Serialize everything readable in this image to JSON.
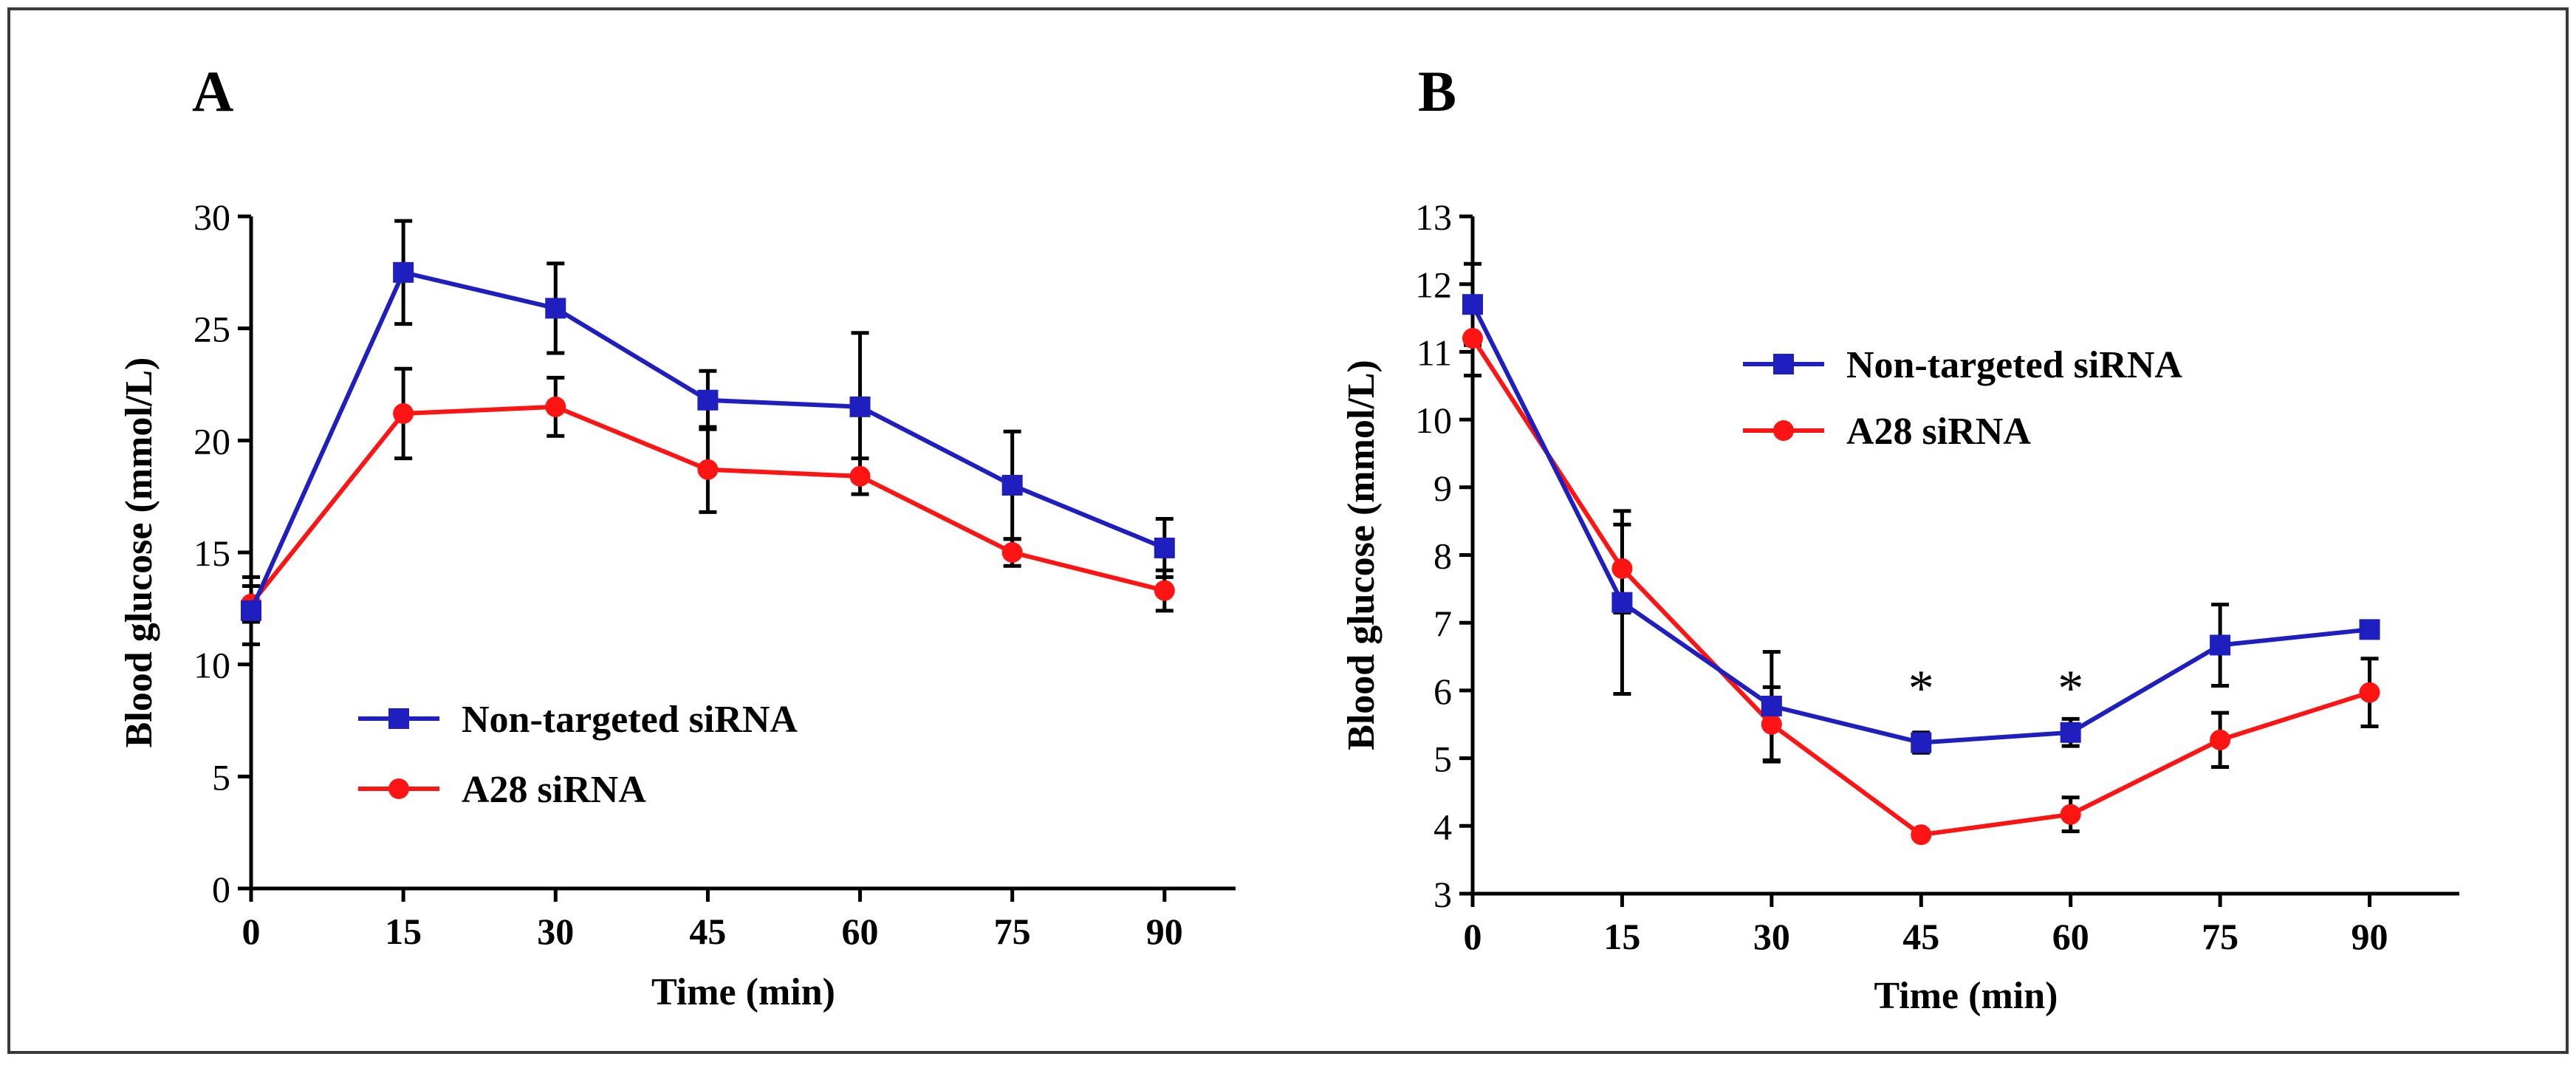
{
  "colors": {
    "frame": "#3a3a3a",
    "axis": "#000000",
    "non_targeted": "#1f1fbf",
    "a28": "#ff1414",
    "error_bar": "#000000"
  },
  "chart_data": [
    {
      "type": "line",
      "panel_label": "A",
      "title": "",
      "xlabel": "Time (min)",
      "ylabel": "Blood glucose (mmol/L)",
      "x": [
        0,
        15,
        30,
        45,
        60,
        75,
        90
      ],
      "xticks": [
        "0",
        "15",
        "30",
        "45",
        "60",
        "75",
        "90"
      ],
      "xlim": [
        0,
        97
      ],
      "ylim": [
        0,
        30
      ],
      "yticks": [
        "0",
        "5",
        "10",
        "15",
        "20",
        "25",
        "30"
      ],
      "grid": false,
      "legend": "lower-left",
      "series": [
        {
          "name": "Non-targeted siRNA",
          "marker": "square",
          "color_key": "non_targeted",
          "values": [
            12.4,
            27.5,
            25.9,
            21.8,
            21.5,
            18.0,
            15.2
          ],
          "errors": [
            1.5,
            2.3,
            2.0,
            1.3,
            3.3,
            2.4,
            1.3
          ]
        },
        {
          "name": "A28 siRNA",
          "marker": "circle",
          "color_key": "a28",
          "values": [
            12.7,
            21.2,
            21.5,
            18.7,
            18.4,
            15.0,
            13.3
          ],
          "errors": [
            0.8,
            2.0,
            1.3,
            1.9,
            0.8,
            0.6,
            0.9
          ]
        }
      ],
      "annotations": []
    },
    {
      "type": "line",
      "panel_label": "B",
      "title": "",
      "xlabel": "Time (min)",
      "ylabel": "Blood glucose (mmol/L)",
      "x": [
        0,
        15,
        30,
        45,
        60,
        75,
        90
      ],
      "xticks": [
        "0",
        "15",
        "30",
        "45",
        "60",
        "75",
        "90"
      ],
      "xlim": [
        0,
        99
      ],
      "ylim": [
        3,
        13
      ],
      "yticks": [
        "3",
        "4",
        "5",
        "6",
        "7",
        "8",
        "9",
        "10",
        "11",
        "12",
        "13"
      ],
      "grid": false,
      "legend": "top-center",
      "series": [
        {
          "name": "Non-targeted siRNA",
          "marker": "square",
          "color_key": "non_targeted",
          "values": [
            11.7,
            7.3,
            5.77,
            5.23,
            5.38,
            6.67,
            6.9
          ],
          "errors": [
            0.6,
            1.35,
            0.8,
            0.15,
            0.2,
            0.6,
            0.07
          ]
        },
        {
          "name": "A28 siRNA",
          "marker": "circle",
          "color_key": "a28",
          "values": [
            11.2,
            7.8,
            5.5,
            3.87,
            4.17,
            5.27,
            5.97
          ],
          "errors": [
            0.55,
            0.65,
            0.55,
            0.05,
            0.25,
            0.4,
            0.5
          ]
        }
      ],
      "annotations": [
        {
          "x": 45,
          "text": "*"
        },
        {
          "x": 60,
          "text": "*"
        }
      ]
    }
  ]
}
